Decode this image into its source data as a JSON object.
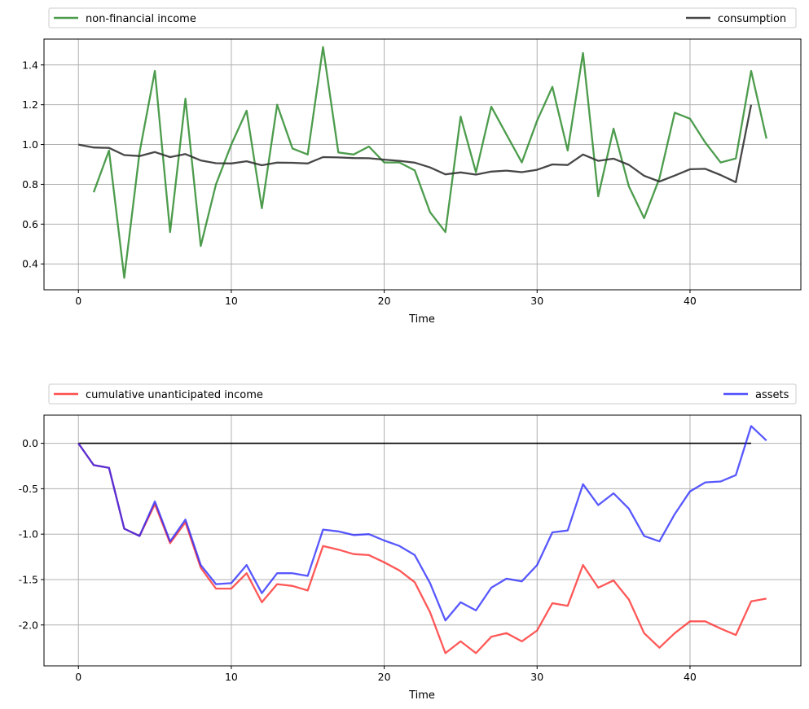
{
  "chart_data": [
    {
      "type": "line",
      "xlabel": "Time",
      "ylabel": "",
      "xlim": [
        -2.25,
        47.25
      ],
      "ylim": [
        0.27,
        1.53
      ],
      "xticks": [
        "0",
        "10",
        "20",
        "30",
        "40"
      ],
      "yticks": [
        "0.4",
        "0.6",
        "0.8",
        "1.0",
        "1.2",
        "1.4"
      ],
      "grid": true,
      "legend": "top, above plot",
      "series": [
        {
          "name": "non-financial income",
          "color": "#2e8b2e",
          "x": [
            1,
            2,
            3,
            4,
            5,
            6,
            7,
            8,
            9,
            10,
            11,
            12,
            13,
            14,
            15,
            16,
            17,
            18,
            19,
            20,
            21,
            22,
            23,
            24,
            25,
            26,
            27,
            28,
            29,
            30,
            31,
            32,
            33,
            34,
            35,
            36,
            37,
            38,
            39,
            40,
            41,
            42,
            43,
            44,
            45
          ],
          "values": [
            0.76,
            0.97,
            0.33,
            0.96,
            1.37,
            0.56,
            1.23,
            0.49,
            0.8,
            1.0,
            1.17,
            0.68,
            1.2,
            0.98,
            0.95,
            1.49,
            0.96,
            0.95,
            0.99,
            0.91,
            0.91,
            0.87,
            0.66,
            0.56,
            1.14,
            0.86,
            1.19,
            1.05,
            0.91,
            1.12,
            1.29,
            0.97,
            1.46,
            0.74,
            1.08,
            0.79,
            0.63,
            0.83,
            1.16,
            1.13,
            1.01,
            0.91,
            0.93,
            1.37,
            1.03
          ]
        },
        {
          "name": "consumption",
          "color": "#333333",
          "x": [
            0,
            1,
            2,
            3,
            4,
            5,
            6,
            7,
            8,
            9,
            10,
            11,
            12,
            13,
            14,
            15,
            16,
            17,
            18,
            19,
            20,
            21,
            22,
            23,
            24,
            25,
            26,
            27,
            28,
            29,
            30,
            31,
            32,
            33,
            34,
            35,
            36,
            37,
            38,
            39,
            40,
            41,
            42,
            43,
            44
          ],
          "values": [
            1.0,
            0.985,
            0.983,
            0.947,
            0.942,
            0.962,
            0.937,
            0.952,
            0.92,
            0.906,
            0.905,
            0.916,
            0.896,
            0.909,
            0.908,
            0.905,
            0.937,
            0.935,
            0.932,
            0.931,
            0.924,
            0.918,
            0.909,
            0.885,
            0.85,
            0.86,
            0.849,
            0.864,
            0.869,
            0.861,
            0.873,
            0.9,
            0.897,
            0.95,
            0.918,
            0.929,
            0.898,
            0.843,
            0.814,
            0.844,
            0.876,
            0.878,
            0.847,
            0.811,
            1.2
          ]
        }
      ]
    },
    {
      "type": "line",
      "xlabel": "Time",
      "ylabel": "",
      "xlim": [
        -2.25,
        47.25
      ],
      "ylim": [
        -2.45,
        0.31
      ],
      "xticks": [
        "0",
        "10",
        "20",
        "30",
        "40"
      ],
      "yticks": [
        "-2.0",
        "-1.5",
        "-1.0",
        "-0.5",
        "0.0"
      ],
      "grid": true,
      "legend": "top, above plot",
      "reference_line": {
        "y": 0.0,
        "x": [
          0,
          44
        ],
        "color": "#000000"
      },
      "series": [
        {
          "name": "cumulative unanticipated income",
          "color": "#ff2020",
          "x": [
            0,
            1,
            2,
            3,
            4,
            5,
            6,
            7,
            8,
            9,
            10,
            11,
            12,
            13,
            14,
            15,
            16,
            17,
            18,
            19,
            20,
            21,
            22,
            23,
            24,
            25,
            26,
            27,
            28,
            29,
            30,
            31,
            32,
            33,
            34,
            35,
            36,
            37,
            38,
            39,
            40,
            41,
            42,
            43,
            44,
            45
          ],
          "values": [
            0.0,
            -0.24,
            -0.27,
            -0.94,
            -1.02,
            -0.67,
            -1.1,
            -0.87,
            -1.37,
            -1.6,
            -1.6,
            -1.43,
            -1.75,
            -1.55,
            -1.57,
            -1.62,
            -1.13,
            -1.17,
            -1.22,
            -1.23,
            -1.31,
            -1.4,
            -1.53,
            -1.86,
            -2.31,
            -2.18,
            -2.31,
            -2.13,
            -2.09,
            -2.18,
            -2.06,
            -1.76,
            -1.79,
            -1.34,
            -1.59,
            -1.51,
            -1.72,
            -2.09,
            -2.25,
            -2.09,
            -1.96,
            -1.96,
            -2.04,
            -2.11,
            -1.74,
            -1.71
          ]
        },
        {
          "name": "assets",
          "color": "#2020ff",
          "x": [
            0,
            1,
            2,
            3,
            4,
            5,
            6,
            7,
            8,
            9,
            10,
            11,
            12,
            13,
            14,
            15,
            16,
            17,
            18,
            19,
            20,
            21,
            22,
            23,
            24,
            25,
            26,
            27,
            28,
            29,
            30,
            31,
            32,
            33,
            34,
            35,
            36,
            37,
            38,
            39,
            40,
            41,
            42,
            43,
            44,
            45
          ],
          "values": [
            0.0,
            -0.24,
            -0.27,
            -0.94,
            -1.02,
            -0.64,
            -1.08,
            -0.84,
            -1.34,
            -1.55,
            -1.54,
            -1.34,
            -1.65,
            -1.43,
            -1.43,
            -1.46,
            -0.95,
            -0.97,
            -1.01,
            -1.0,
            -1.07,
            -1.13,
            -1.23,
            -1.54,
            -1.95,
            -1.75,
            -1.84,
            -1.59,
            -1.49,
            -1.52,
            -1.34,
            -0.98,
            -0.96,
            -0.45,
            -0.68,
            -0.55,
            -0.72,
            -1.02,
            -1.08,
            -0.78,
            -0.53,
            -0.43,
            -0.42,
            -0.35,
            0.19,
            0.03
          ]
        }
      ]
    }
  ]
}
